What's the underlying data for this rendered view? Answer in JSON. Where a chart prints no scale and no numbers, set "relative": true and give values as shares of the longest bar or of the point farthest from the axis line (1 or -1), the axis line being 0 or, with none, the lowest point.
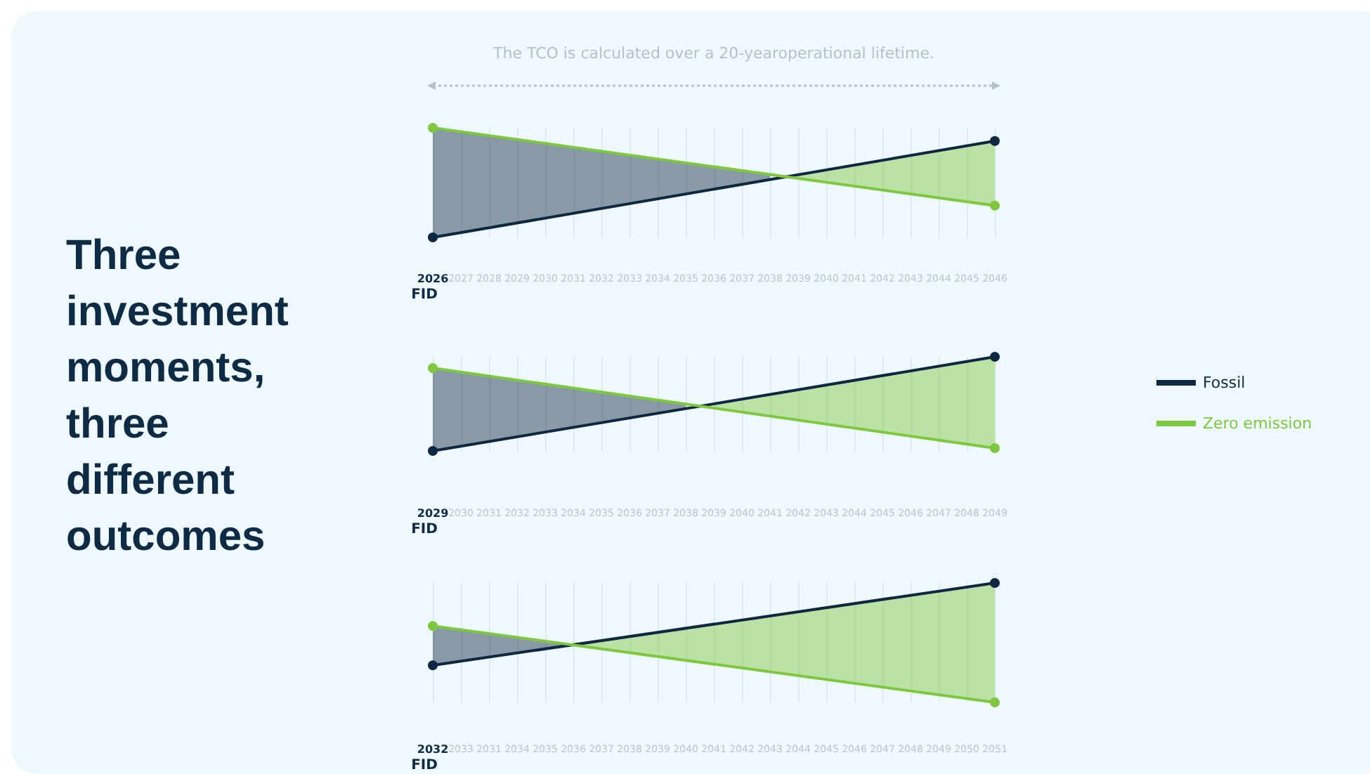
{
  "chart_data": [
    {
      "type": "line",
      "title": "Three investment moments, three different outcomes",
      "annotations": [
        "The TCO is calculated over a 20-yearoperational lifetime."
      ],
      "xlabel": "FID",
      "relative": true,
      "grid": "x",
      "marker": "circle",
      "line_style": "solid",
      "categories": [
        "2026",
        "2027",
        "2028",
        "2029",
        "2030",
        "2031",
        "2032",
        "2033",
        "2034",
        "2035",
        "2036",
        "2037",
        "2038",
        "2039",
        "2040",
        "2041",
        "2042",
        "2043",
        "2044",
        "2045",
        "2046"
      ],
      "series": [
        {
          "color": "#0d2840",
          "values": [
            0,
            null,
            null,
            null,
            null,
            null,
            null,
            null,
            null,
            null,
            null,
            null,
            null,
            null,
            null,
            null,
            null,
            null,
            null,
            null,
            0.88
          ],
          "lower": [
            0,
            0.04,
            0.09,
            0.13,
            0.18,
            0.22,
            0.26,
            0.31,
            0.35,
            0.4,
            0.44,
            0.48,
            0.53,
            null,
            null,
            null,
            null,
            null,
            null,
            null,
            null
          ],
          "upper": [
            1,
            0.96,
            0.93,
            0.89,
            0.86,
            0.82,
            0.79,
            0.75,
            0.72,
            0.68,
            0.65,
            0.61,
            0.57,
            null,
            null,
            null,
            null,
            null,
            null,
            null,
            null
          ]
        },
        {
          "color": "#7dc83e",
          "values": [
            1,
            null,
            null,
            null,
            null,
            null,
            null,
            null,
            null,
            null,
            null,
            null,
            null,
            null,
            null,
            null,
            null,
            null,
            null,
            null,
            0.29
          ],
          "lower": [
            null,
            null,
            null,
            null,
            null,
            null,
            null,
            null,
            null,
            null,
            null,
            null,
            null,
            0.54,
            0.5,
            0.47,
            0.43,
            0.4,
            0.36,
            0.33,
            0.29
          ],
          "upper": [
            null,
            null,
            null,
            null,
            null,
            null,
            null,
            null,
            null,
            null,
            null,
            null,
            null,
            0.57,
            0.62,
            0.66,
            0.7,
            0.75,
            0.79,
            0.84,
            0.88
          ]
        }
      ]
    },
    {
      "type": "line",
      "xlabel": "FID",
      "relative": true,
      "grid": "x",
      "marker": "circle",
      "line_style": "solid",
      "legend": "right",
      "categories": [
        "2029",
        "2030",
        "2031",
        "2032",
        "2033",
        "2034",
        "2035",
        "2036",
        "2037",
        "2038",
        "2039",
        "2040",
        "2041",
        "2042",
        "2043",
        "2044",
        "2045",
        "2046",
        "2047",
        "2048",
        "2049"
      ],
      "series": [
        {
          "name": "Fossil",
          "color": "#0d2840",
          "values": [
            0,
            null,
            null,
            null,
            null,
            null,
            null,
            null,
            null,
            null,
            null,
            null,
            null,
            null,
            null,
            null,
            null,
            null,
            null,
            null,
            1
          ],
          "lower": [
            0,
            0.05,
            0.1,
            0.15,
            0.2,
            0.25,
            0.3,
            0.35,
            0.4,
            0.45,
            null,
            null,
            null,
            null,
            null,
            null,
            null,
            null,
            null,
            null,
            null
          ],
          "upper": [
            0.88,
            0.84,
            0.8,
            0.75,
            0.71,
            0.67,
            0.63,
            0.58,
            0.54,
            0.5,
            null,
            null,
            null,
            null,
            null,
            null,
            null,
            null,
            null,
            null,
            null
          ]
        },
        {
          "name": "Zero emission",
          "color": "#7dc83e",
          "values": [
            0.88,
            null,
            null,
            null,
            null,
            null,
            null,
            null,
            null,
            null,
            null,
            null,
            null,
            null,
            null,
            null,
            null,
            null,
            null,
            null,
            0.03
          ],
          "lower": [
            null,
            null,
            null,
            null,
            null,
            null,
            null,
            null,
            null,
            null,
            0.46,
            0.41,
            0.37,
            0.33,
            0.29,
            0.24,
            0.2,
            0.16,
            0.12,
            0.07,
            0.03
          ],
          "upper": [
            null,
            null,
            null,
            null,
            null,
            null,
            null,
            null,
            null,
            null,
            0.5,
            0.55,
            0.6,
            0.65,
            0.7,
            0.75,
            0.8,
            0.85,
            0.9,
            0.95,
            1
          ]
        }
      ]
    },
    {
      "type": "line",
      "xlabel": "FID",
      "relative": true,
      "grid": "x",
      "marker": "circle",
      "line_style": "solid",
      "categories": [
        "2032",
        "2033",
        "2031",
        "2034",
        "2035",
        "2036",
        "2037",
        "2038",
        "2039",
        "2040",
        "2041",
        "2042",
        "2043",
        "2044",
        "2045",
        "2046",
        "2047",
        "2048",
        "2049",
        "2050",
        "2051"
      ],
      "series": [
        {
          "color": "#0d2840",
          "values": [
            0.31,
            null,
            null,
            null,
            null,
            null,
            null,
            null,
            null,
            null,
            null,
            null,
            null,
            null,
            null,
            null,
            null,
            null,
            null,
            null,
            1
          ],
          "lower": [
            0.31,
            0.34,
            0.38,
            0.41,
            0.45,
            0.48,
            null,
            null,
            null,
            null,
            null,
            null,
            null,
            null,
            null,
            null,
            null,
            null,
            null,
            null,
            null
          ],
          "upper": [
            0.64,
            0.61,
            0.58,
            0.54,
            0.51,
            0.48,
            null,
            null,
            null,
            null,
            null,
            null,
            null,
            null,
            null,
            null,
            null,
            null,
            null,
            null,
            null
          ]
        },
        {
          "color": "#7dc83e",
          "values": [
            0.64,
            null,
            null,
            null,
            null,
            null,
            null,
            null,
            null,
            null,
            null,
            null,
            null,
            null,
            null,
            null,
            null,
            null,
            null,
            null,
            0
          ],
          "lower": [
            null,
            null,
            null,
            null,
            null,
            0.48,
            0.45,
            0.42,
            0.38,
            0.35,
            0.32,
            0.29,
            0.26,
            0.22,
            0.19,
            0.16,
            0.13,
            0.1,
            0.06,
            0.03,
            0
          ],
          "upper": [
            null,
            null,
            null,
            null,
            null,
            0.48,
            0.52,
            0.55,
            0.59,
            0.62,
            0.66,
            0.69,
            0.72,
            0.76,
            0.79,
            0.83,
            0.86,
            0.9,
            0.93,
            0.97,
            1
          ]
        }
      ]
    }
  ]
}
